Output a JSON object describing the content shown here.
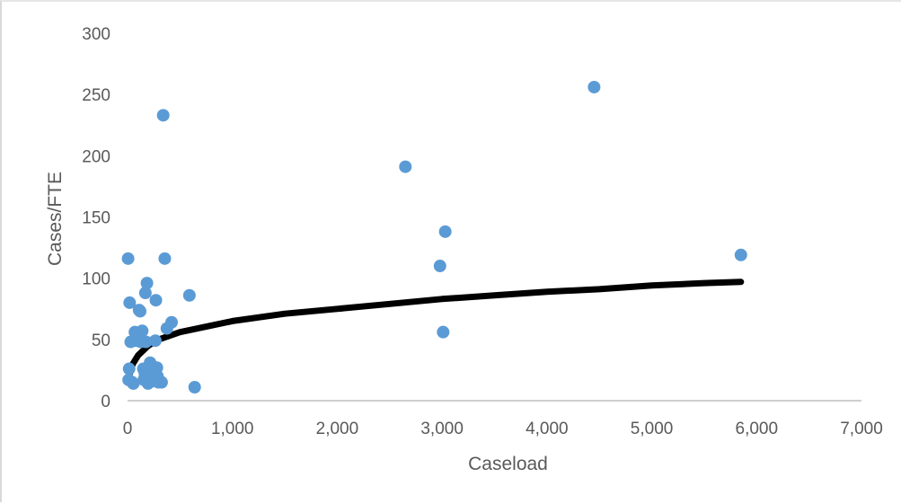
{
  "chart_data": {
    "type": "scatter",
    "title": "",
    "xlabel": "Caseload",
    "ylabel": "Cases/FTE",
    "xlim": [
      0,
      7000
    ],
    "ylim": [
      0,
      300
    ],
    "x_ticks": [
      "0",
      "1,000",
      "2,000",
      "3,000",
      "4,000",
      "5,000",
      "6,000",
      "7,000"
    ],
    "y_ticks": [
      "0",
      "50",
      "100",
      "150",
      "200",
      "250",
      "300"
    ],
    "grid": false,
    "legend": "none",
    "colors": {
      "points": "#5b9bd5",
      "trendline": "#000000",
      "axis": "#bfbfbf",
      "text": "#595959"
    },
    "series": [
      {
        "type": "scatter",
        "points": [
          [
            5,
            116
          ],
          [
            20,
            80
          ],
          [
            30,
            48
          ],
          [
            45,
            15
          ],
          [
            15,
            26
          ],
          [
            10,
            17
          ],
          [
            55,
            14
          ],
          [
            70,
            56
          ],
          [
            80,
            49
          ],
          [
            95,
            55
          ],
          [
            110,
            74
          ],
          [
            120,
            73
          ],
          [
            125,
            48
          ],
          [
            140,
            57
          ],
          [
            150,
            26
          ],
          [
            155,
            17
          ],
          [
            165,
            22
          ],
          [
            170,
            88
          ],
          [
            175,
            48
          ],
          [
            185,
            96
          ],
          [
            195,
            14
          ],
          [
            200,
            18
          ],
          [
            215,
            31
          ],
          [
            225,
            22
          ],
          [
            240,
            28
          ],
          [
            250,
            16
          ],
          [
            265,
            49
          ],
          [
            270,
            82
          ],
          [
            280,
            27
          ],
          [
            285,
            20
          ],
          [
            295,
            15
          ],
          [
            325,
            15
          ],
          [
            340,
            233
          ],
          [
            355,
            116
          ],
          [
            375,
            59
          ],
          [
            420,
            64
          ],
          [
            590,
            86
          ],
          [
            640,
            11
          ],
          [
            2650,
            191
          ],
          [
            2980,
            110
          ],
          [
            3010,
            56
          ],
          [
            3030,
            138
          ],
          [
            4450,
            256
          ],
          [
            5850,
            119
          ]
        ]
      },
      {
        "type": "trendline",
        "model": "power",
        "x": [
          20,
          50,
          100,
          200,
          300,
          500,
          1000,
          1500,
          2000,
          2500,
          3000,
          3500,
          4000,
          4500,
          5000,
          5500,
          5850
        ],
        "y": [
          22,
          30,
          37,
          45,
          50,
          56,
          65,
          71,
          75,
          79,
          83,
          86,
          89,
          91,
          94,
          96,
          97
        ]
      }
    ]
  }
}
